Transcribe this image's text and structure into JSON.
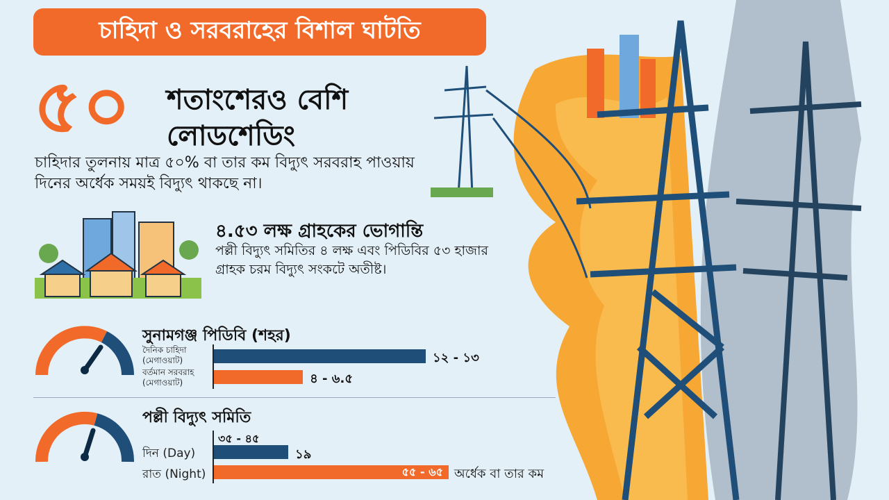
{
  "title": "চাহিদা ও সরবরাহের বিশাল ঘাটতি",
  "headline": {
    "number": "৫০",
    "line1": "শতাংশেরও বেশি",
    "line2": "লোডশেডিং"
  },
  "summary": "চাহিদার তুলনায় মাত্র ৫০% বা তার কম বিদ্যুৎ সরবরাহ পাওয়ায় দিনের অর্ধেক সময়ই বিদ্যুৎ থাকছে না।",
  "customers": {
    "heading": "৪.৫৩ লক্ষ গ্রাহকের ভোগান্তি",
    "text": "পল্লী বিদ্যুৎ সমিতির ৪ লক্ষ এবং পিডিবির ৫৩ হাজার গ্রাহক চরম বিদ্যুৎ সংকটে অতীষ্ট।"
  },
  "colors": {
    "accent": "#f26a2a",
    "primary": "#1f4e79",
    "background": "#e4f0f7"
  },
  "chart_data": [
    {
      "type": "bar",
      "title": "সুনামগঞ্জ পিডিবি (শহর)",
      "categories": [
        "দৈনিক চাহিদা (মেগাওয়াট)",
        "বর্তমান সরবরাহ (মেগাওয়াট)"
      ],
      "labels": [
        "১২ - ১৩",
        "৪ - ৬.৫"
      ],
      "values": [
        12.5,
        5.25
      ],
      "colors": [
        "#1f4e79",
        "#f26a2a"
      ]
    },
    {
      "type": "bar",
      "title": "পল্লী বিদ্যুৎ সমিতি",
      "top_label": "৩৫ - ৪৫",
      "categories": [
        "দিন (Day)",
        "রাত (Night)"
      ],
      "labels": [
        "১৯",
        "৫৫ - ৬৫"
      ],
      "values": [
        19,
        60
      ],
      "colors": [
        "#1f4e79",
        "#f26a2a"
      ],
      "note": "অর্ধেক বা তার কম"
    }
  ]
}
